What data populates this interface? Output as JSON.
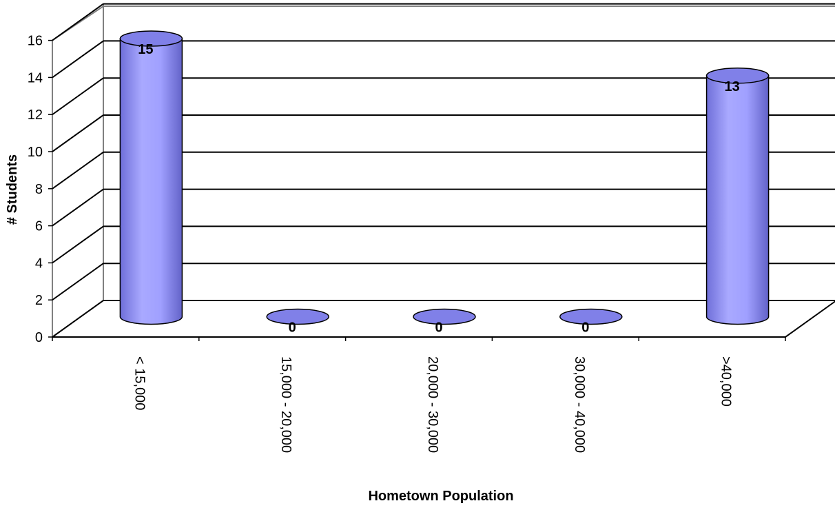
{
  "chart_data": {
    "type": "bar",
    "style": "3d-cylinder",
    "categories": [
      "< 15,000",
      "15,000 - 20,000",
      "20,000 - 30,000",
      "30,000 - 40,000",
      ">40,000"
    ],
    "values": [
      15,
      0,
      0,
      0,
      13
    ],
    "data_labels": [
      "15",
      "0",
      "0",
      "0",
      "13"
    ],
    "xlabel": "Hometown Population",
    "ylabel": "# Students",
    "ylim": [
      0,
      16
    ],
    "yticks": [
      "0",
      "2",
      "4",
      "6",
      "8",
      "10",
      "12",
      "14",
      "16"
    ],
    "grid": true,
    "legend": "none",
    "colors": {
      "bar": "#9999ff",
      "bar_dark": "#5a5ac8",
      "top": "#8080e8",
      "grid": "#000000",
      "wall": "#808080"
    }
  }
}
